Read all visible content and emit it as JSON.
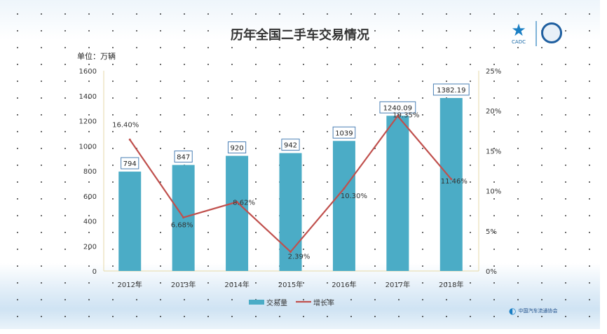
{
  "chart_data": {
    "type": "bar+line",
    "title": "历年全国二手车交易情况",
    "unit_label": "单位：万辆",
    "categories": [
      "2012年",
      "2013年",
      "2014年",
      "2015年",
      "2016年",
      "2017年",
      "2018年"
    ],
    "series": [
      {
        "name": "交易量",
        "type": "bar",
        "axis": "left",
        "values": [
          794,
          847,
          920,
          942,
          1039,
          1240.09,
          1382.19
        ],
        "labels": [
          "794",
          "847",
          "920",
          "942",
          "1039",
          "1240.09",
          "1382.19"
        ],
        "color": "#4bacc6"
      },
      {
        "name": "增长率",
        "type": "line",
        "axis": "right",
        "values": [
          16.4,
          6.68,
          8.62,
          2.39,
          10.3,
          19.35,
          11.46
        ],
        "labels": [
          "16.40%",
          "6.68%",
          "8.62%",
          "2.39%",
          "10.30%",
          "19.35%",
          "11.46%"
        ],
        "color": "#c0504d"
      }
    ],
    "left_axis": {
      "ylim": [
        0,
        1600
      ],
      "ticks": [
        "0",
        "200",
        "400",
        "600",
        "800",
        "1000",
        "1200",
        "1400",
        "1600"
      ]
    },
    "right_axis": {
      "ylim": [
        0,
        25
      ],
      "ticks": [
        "0%",
        "5%",
        "10%",
        "15%",
        "20%",
        "25%"
      ]
    },
    "legend": "bottom"
  },
  "logos": {
    "cadc": "CADC",
    "association": "中国汽车流通协会"
  }
}
